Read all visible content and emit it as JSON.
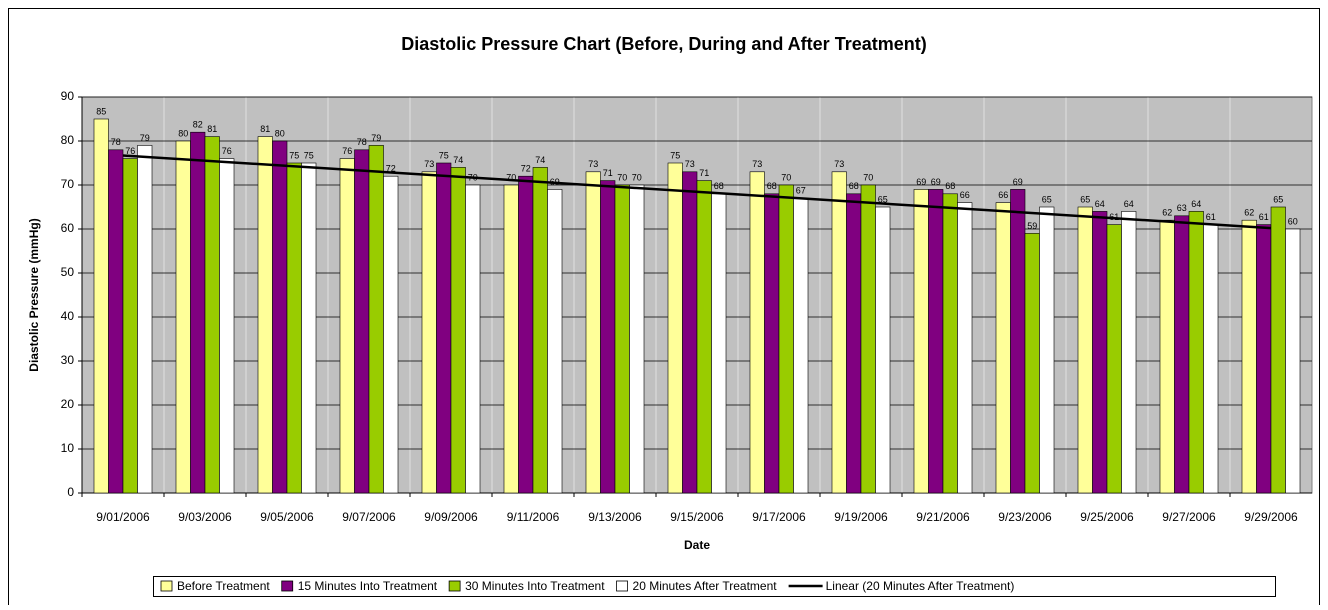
{
  "chart_data": {
    "type": "bar",
    "title": "Diastolic Pressure Chart (Before, During and After Treatment)",
    "x_label": "Date",
    "y_label": "Diastolic Pressure (mmHg)",
    "categories": [
      "9/01/2006",
      "9/03/2006",
      "9/05/2006",
      "9/07/2006",
      "9/09/2006",
      "9/11/2006",
      "9/13/2006",
      "9/15/2006",
      "9/17/2006",
      "9/19/2006",
      "9/21/2006",
      "9/23/2006",
      "9/25/2006",
      "9/27/2006",
      "9/29/2006"
    ],
    "series": [
      {
        "name": "Before Treatment",
        "color": "#ffff99",
        "values": [
          85,
          80,
          81,
          76,
          73,
          70,
          73,
          75,
          73,
          73,
          69,
          66,
          65,
          62,
          62
        ]
      },
      {
        "name": "15 Minutes Into Treatment",
        "color": "#800080",
        "values": [
          78,
          82,
          80,
          78,
          75,
          72,
          71,
          73,
          68,
          68,
          69,
          69,
          64,
          63,
          61
        ]
      },
      {
        "name": "30 Minutes Into Treatment",
        "color": "#99cc00",
        "values": [
          76,
          81,
          75,
          79,
          74,
          74,
          70,
          71,
          70,
          70,
          68,
          59,
          61,
          64,
          65
        ]
      },
      {
        "name": "20 Minutes After Treatment",
        "color": "#ffffff",
        "values": [
          79,
          76,
          75,
          72,
          70,
          69,
          70,
          68,
          67,
          65,
          66,
          65,
          64,
          61,
          60
        ]
      }
    ],
    "trendline": {
      "name": "Linear (20 Minutes After Treatment)",
      "color": "#000000",
      "values": [
        76.7,
        60.2
      ]
    },
    "ylim": [
      0,
      90
    ],
    "yticks": [
      0,
      10,
      20,
      30,
      40,
      50,
      60,
      70,
      80,
      90
    ],
    "grid": true,
    "plot_background": "#c0c0c0",
    "legend": "bottom"
  }
}
